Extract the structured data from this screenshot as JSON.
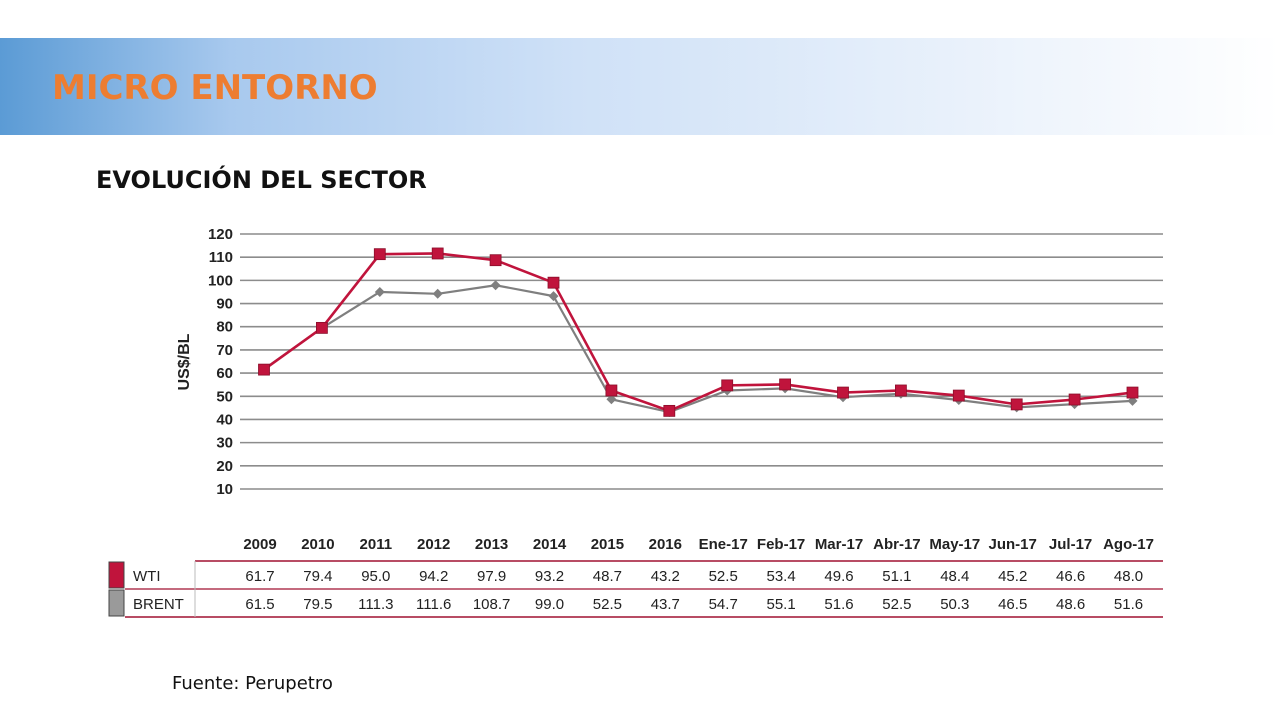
{
  "header": {
    "title": "MICRO ENTORNO"
  },
  "subtitle": "EVOLUCIÓN DEL SECTOR",
  "source": "Fuente: Perupetro",
  "colors": {
    "wti": "#c0143c",
    "brent": "#7f7f7f",
    "title": "#ed7d31",
    "banner": "#5b9bd5"
  },
  "chart_data": {
    "type": "line",
    "ylabel": "US$/BL",
    "xlabel": "",
    "ylim": [
      10,
      120
    ],
    "yticks": [
      120,
      110,
      100,
      90,
      80,
      70,
      60,
      50,
      40,
      30,
      20,
      10
    ],
    "grid": true,
    "categories": [
      "2009",
      "2010",
      "2011",
      "2012",
      "2013",
      "2014",
      "2015",
      "2016",
      "Ene-17",
      "Feb-17",
      "Mar-17",
      "Abr-17",
      "May-17",
      "Jun-17",
      "Jul-17",
      "Ago-17"
    ],
    "series": [
      {
        "name": "WTI",
        "color": "#7f7f7f",
        "marker": "diamond",
        "values": [
          61.7,
          79.4,
          95.0,
          94.2,
          97.9,
          93.2,
          48.7,
          43.2,
          52.5,
          53.4,
          49.6,
          51.1,
          48.4,
          45.2,
          46.6,
          48.0
        ]
      },
      {
        "name": "BRENT",
        "color": "#c0143c",
        "marker": "square",
        "values": [
          61.5,
          79.5,
          111.3,
          111.6,
          108.7,
          99.0,
          52.5,
          43.7,
          54.7,
          55.1,
          51.6,
          52.5,
          50.3,
          46.5,
          48.6,
          51.6
        ]
      }
    ],
    "table": {
      "rows": [
        {
          "label": "WTI",
          "values": [
            "61.7",
            "79.4",
            "95.0",
            "94.2",
            "97.9",
            "93.2",
            "48.7",
            "43.2",
            "52.5",
            "53.4",
            "49.6",
            "51.1",
            "48.4",
            "45.2",
            "46.6",
            "48.0"
          ]
        },
        {
          "label": "BRENT",
          "values": [
            "61.5",
            "79.5",
            "111.3",
            "111.6",
            "108.7",
            "99.0",
            "52.5",
            "43.7",
            "54.7",
            "55.1",
            "51.6",
            "52.5",
            "50.3",
            "46.5",
            "48.6",
            "51.6"
          ]
        }
      ]
    }
  }
}
